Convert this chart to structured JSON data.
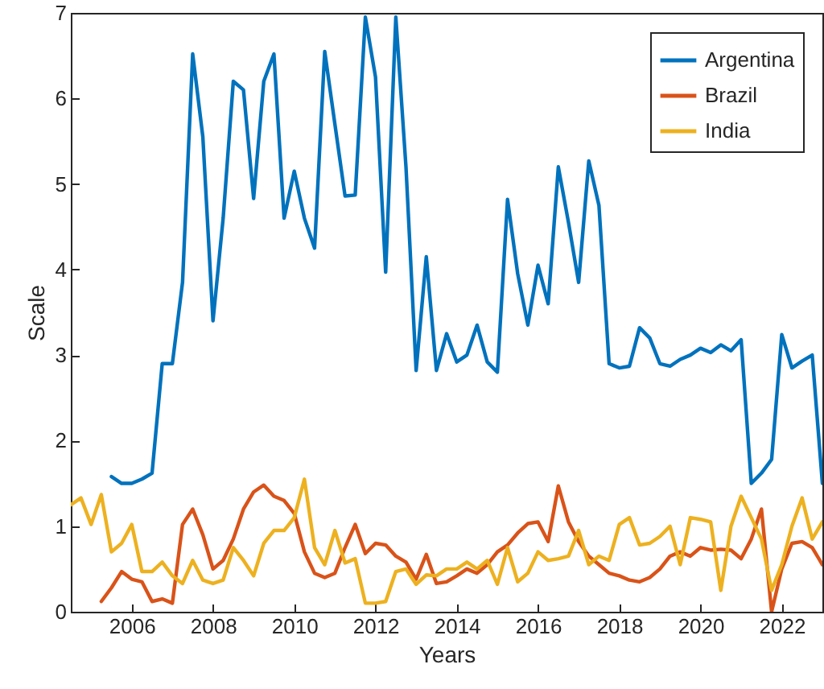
{
  "chart_data": {
    "type": "line",
    "xlabel": "Years",
    "ylabel": "Scale",
    "xlim": [
      2004.5,
      2023
    ],
    "ylim": [
      0,
      7
    ],
    "xticks": [
      2006,
      2008,
      2010,
      2012,
      2014,
      2016,
      2018,
      2020,
      2022
    ],
    "yticks": [
      0,
      1,
      2,
      3,
      4,
      5,
      6,
      7
    ],
    "grid": false,
    "legend": "top right",
    "marker": "none",
    "line_style": "solid",
    "series": [
      {
        "name": "Argentina",
        "color": "#0072bd",
        "x": [
          2005.5,
          2005.75,
          2006,
          2006.25,
          2006.5,
          2006.75,
          2007,
          2007.25,
          2007.5,
          2007.75,
          2008,
          2008.25,
          2008.5,
          2008.75,
          2009,
          2009.25,
          2009.5,
          2009.75,
          2010,
          2010.25,
          2010.5,
          2010.75,
          2011,
          2011.25,
          2011.5,
          2011.75,
          2012,
          2012.25,
          2012.5,
          2012.75,
          2013,
          2013.25,
          2013.5,
          2013.75,
          2014,
          2014.25,
          2014.5,
          2014.75,
          2015,
          2015.25,
          2015.5,
          2015.75,
          2016,
          2016.25,
          2016.5,
          2016.75,
          2017,
          2017.25,
          2017.5,
          2017.75,
          2018,
          2018.25,
          2018.5,
          2018.75,
          2019,
          2019.25,
          2019.5,
          2019.75,
          2020,
          2020.25,
          2020.5,
          2020.75,
          2021,
          2021.25,
          2021.5,
          2021.75,
          2022,
          2022.25,
          2022.5,
          2022.75,
          2023
        ],
        "values": [
          1.58,
          1.5,
          1.5,
          1.55,
          1.62,
          2.9,
          2.9,
          3.85,
          6.52,
          5.55,
          3.4,
          4.6,
          6.2,
          6.1,
          4.83,
          6.2,
          6.52,
          4.6,
          5.15,
          4.6,
          4.25,
          6.55,
          5.7,
          4.86,
          4.87,
          6.95,
          6.25,
          3.97,
          6.95,
          5.2,
          2.82,
          4.15,
          2.82,
          3.25,
          2.92,
          3.0,
          3.35,
          2.92,
          2.8,
          4.82,
          3.95,
          3.35,
          4.05,
          3.6,
          5.2,
          4.55,
          3.85,
          5.27,
          4.75,
          2.9,
          2.85,
          2.87,
          3.32,
          3.2,
          2.9,
          2.87,
          2.95,
          3.0,
          3.08,
          3.03,
          3.12,
          3.05,
          3.18,
          1.5,
          1.62,
          1.78,
          3.24,
          2.85,
          2.93,
          3.0,
          1.5
        ]
      },
      {
        "name": "Brazil",
        "color": "#d95319",
        "x": [
          2005.25,
          2005.5,
          2005.75,
          2006,
          2006.25,
          2006.5,
          2006.75,
          2007,
          2007.25,
          2007.5,
          2007.75,
          2008,
          2008.25,
          2008.5,
          2008.75,
          2009,
          2009.25,
          2009.5,
          2009.75,
          2010,
          2010.25,
          2010.5,
          2010.75,
          2011,
          2011.25,
          2011.5,
          2011.75,
          2012,
          2012.25,
          2012.5,
          2012.75,
          2013,
          2013.25,
          2013.5,
          2013.75,
          2014,
          2014.25,
          2014.5,
          2014.75,
          2015,
          2015.25,
          2015.5,
          2015.75,
          2016,
          2016.25,
          2016.5,
          2016.75,
          2017,
          2017.25,
          2017.5,
          2017.75,
          2018,
          2018.25,
          2018.5,
          2018.75,
          2019,
          2019.25,
          2019.5,
          2019.75,
          2020,
          2020.25,
          2020.5,
          2020.75,
          2021,
          2021.25,
          2021.5,
          2021.75,
          2022,
          2022.25,
          2022.5,
          2022.75,
          2023
        ],
        "values": [
          0.12,
          0.28,
          0.47,
          0.38,
          0.35,
          0.12,
          0.15,
          0.1,
          1.02,
          1.2,
          0.9,
          0.5,
          0.6,
          0.85,
          1.2,
          1.4,
          1.48,
          1.35,
          1.3,
          1.15,
          0.7,
          0.45,
          0.4,
          0.45,
          0.75,
          1.02,
          0.68,
          0.8,
          0.78,
          0.65,
          0.58,
          0.38,
          0.67,
          0.33,
          0.35,
          0.42,
          0.5,
          0.45,
          0.55,
          0.7,
          0.78,
          0.92,
          1.03,
          1.05,
          0.82,
          1.47,
          1.05,
          0.82,
          0.65,
          0.55,
          0.45,
          0.42,
          0.37,
          0.35,
          0.4,
          0.5,
          0.65,
          0.7,
          0.65,
          0.75,
          0.72,
          0.73,
          0.72,
          0.62,
          0.85,
          1.2,
          0.0,
          0.5,
          0.8,
          0.82,
          0.75,
          0.55
        ]
      },
      {
        "name": "India",
        "color": "#edb120",
        "x": [
          2004.5,
          2004.75,
          2005,
          2005.25,
          2005.5,
          2005.75,
          2006,
          2006.25,
          2006.5,
          2006.75,
          2007,
          2007.25,
          2007.5,
          2007.75,
          2008,
          2008.25,
          2008.5,
          2008.75,
          2009,
          2009.25,
          2009.5,
          2009.75,
          2010,
          2010.25,
          2010.5,
          2010.75,
          2011,
          2011.25,
          2011.5,
          2011.75,
          2012,
          2012.25,
          2012.5,
          2012.75,
          2013,
          2013.25,
          2013.5,
          2013.75,
          2014,
          2014.25,
          2014.5,
          2014.75,
          2015,
          2015.25,
          2015.5,
          2015.75,
          2016,
          2016.25,
          2016.5,
          2016.75,
          2017,
          2017.25,
          2017.5,
          2017.75,
          2018,
          2018.25,
          2018.5,
          2018.75,
          2019,
          2019.25,
          2019.5,
          2019.75,
          2020,
          2020.25,
          2020.5,
          2020.75,
          2021,
          2021.25,
          2021.5,
          2021.75,
          2022,
          2022.25,
          2022.5,
          2022.75,
          2023
        ],
        "values": [
          1.25,
          1.33,
          1.02,
          1.37,
          0.7,
          0.8,
          1.02,
          0.47,
          0.47,
          0.58,
          0.42,
          0.33,
          0.6,
          0.37,
          0.33,
          0.37,
          0.75,
          0.6,
          0.42,
          0.8,
          0.95,
          0.95,
          1.1,
          1.55,
          0.75,
          0.55,
          0.95,
          0.57,
          0.62,
          0.1,
          0.1,
          0.12,
          0.47,
          0.5,
          0.32,
          0.43,
          0.42,
          0.5,
          0.5,
          0.58,
          0.5,
          0.6,
          0.32,
          0.75,
          0.35,
          0.45,
          0.7,
          0.6,
          0.62,
          0.65,
          0.95,
          0.55,
          0.65,
          0.6,
          1.02,
          1.1,
          0.78,
          0.8,
          0.88,
          1.0,
          0.55,
          1.1,
          1.08,
          1.05,
          0.25,
          1.0,
          1.35,
          1.1,
          0.85,
          0.25,
          0.55,
          1.0,
          1.33,
          0.85,
          1.05
        ]
      }
    ]
  }
}
